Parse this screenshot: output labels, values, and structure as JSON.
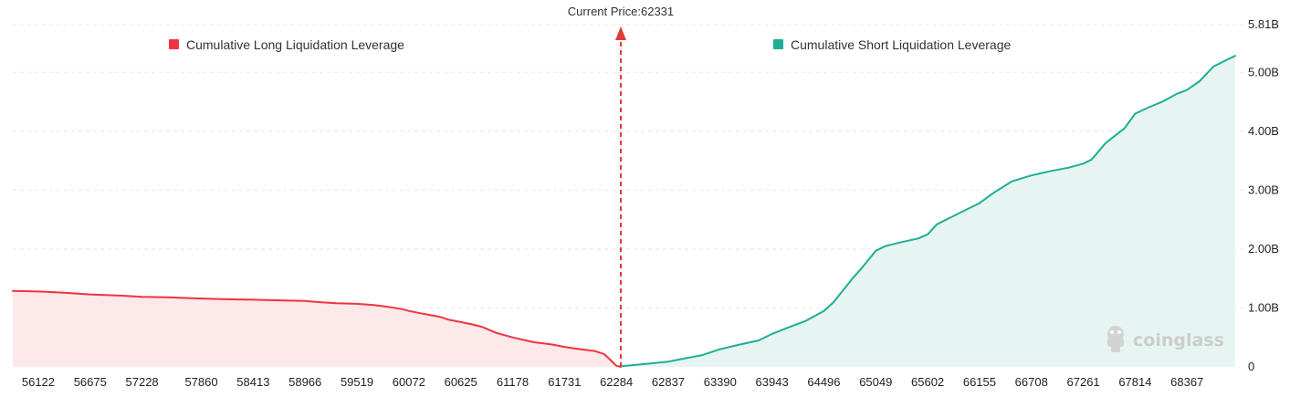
{
  "chart_data": {
    "type": "area",
    "title": "",
    "xlabel": "",
    "ylabel": "",
    "x_ticks": [
      "56122",
      "56675",
      "57228",
      "57860",
      "58413",
      "58966",
      "59519",
      "60072",
      "60625",
      "61178",
      "61731",
      "62284",
      "62837",
      "63390",
      "63943",
      "64496",
      "65049",
      "65602",
      "66155",
      "66708",
      "67261",
      "67814",
      "68367"
    ],
    "y_ticks": [
      "0",
      "1.00B",
      "2.00B",
      "3.00B",
      "4.00B",
      "5.00B",
      "5.81B"
    ],
    "ylim": [
      0,
      5.81
    ],
    "xlim": [
      55850,
      68900
    ],
    "grid": "horizontal dashed",
    "legend_position": "top",
    "current_price_label": "Current Price:62331",
    "current_price": 62331,
    "watermark": "coinglass",
    "colors": {
      "long": "#ef3340",
      "long_fill": "#fde8ea",
      "short": "#1fae95",
      "short_fill": "#e6f5f1",
      "marker": "#e53935",
      "grid": "#e8e8e8"
    },
    "series": [
      {
        "name": "Cumulative Long Liquidation Leverage",
        "unit": "B",
        "x": [
          55850,
          56122,
          56400,
          56675,
          57000,
          57228,
          57500,
          57860,
          58100,
          58413,
          58700,
          58966,
          59100,
          59300,
          59519,
          59700,
          59850,
          60000,
          60072,
          60200,
          60400,
          60500,
          60625,
          60750,
          60850,
          61000,
          61178,
          61400,
          61600,
          61731,
          61850,
          61950,
          62050,
          62150,
          62200,
          62250,
          62284,
          62331
        ],
        "y": [
          1.29,
          1.28,
          1.26,
          1.23,
          1.21,
          1.19,
          1.18,
          1.16,
          1.15,
          1.14,
          1.13,
          1.12,
          1.1,
          1.08,
          1.07,
          1.05,
          1.02,
          0.98,
          0.95,
          0.91,
          0.85,
          0.8,
          0.76,
          0.72,
          0.68,
          0.58,
          0.5,
          0.42,
          0.38,
          0.34,
          0.31,
          0.29,
          0.27,
          0.22,
          0.15,
          0.07,
          0.02,
          0
        ]
      },
      {
        "name": "Cumulative Short Liquidation Leverage",
        "unit": "B",
        "x": [
          62331,
          62450,
          62600,
          62837,
          63000,
          63200,
          63390,
          63600,
          63800,
          63943,
          64100,
          64300,
          64496,
          64600,
          64700,
          64800,
          64900,
          65049,
          65150,
          65300,
          65500,
          65602,
          65700,
          65900,
          66155,
          66300,
          66500,
          66708,
          66900,
          67100,
          67261,
          67350,
          67500,
          67700,
          67814,
          67950,
          68100,
          68250,
          68367,
          68500,
          68650,
          68800,
          68880
        ],
        "y": [
          0.01,
          0.03,
          0.05,
          0.09,
          0.14,
          0.2,
          0.3,
          0.38,
          0.45,
          0.56,
          0.66,
          0.78,
          0.95,
          1.1,
          1.3,
          1.5,
          1.68,
          1.97,
          2.05,
          2.11,
          2.18,
          2.25,
          2.42,
          2.58,
          2.78,
          2.95,
          3.15,
          3.25,
          3.32,
          3.38,
          3.45,
          3.52,
          3.8,
          4.05,
          4.3,
          4.4,
          4.5,
          4.63,
          4.7,
          4.85,
          5.1,
          5.22,
          5.28
        ]
      }
    ]
  }
}
